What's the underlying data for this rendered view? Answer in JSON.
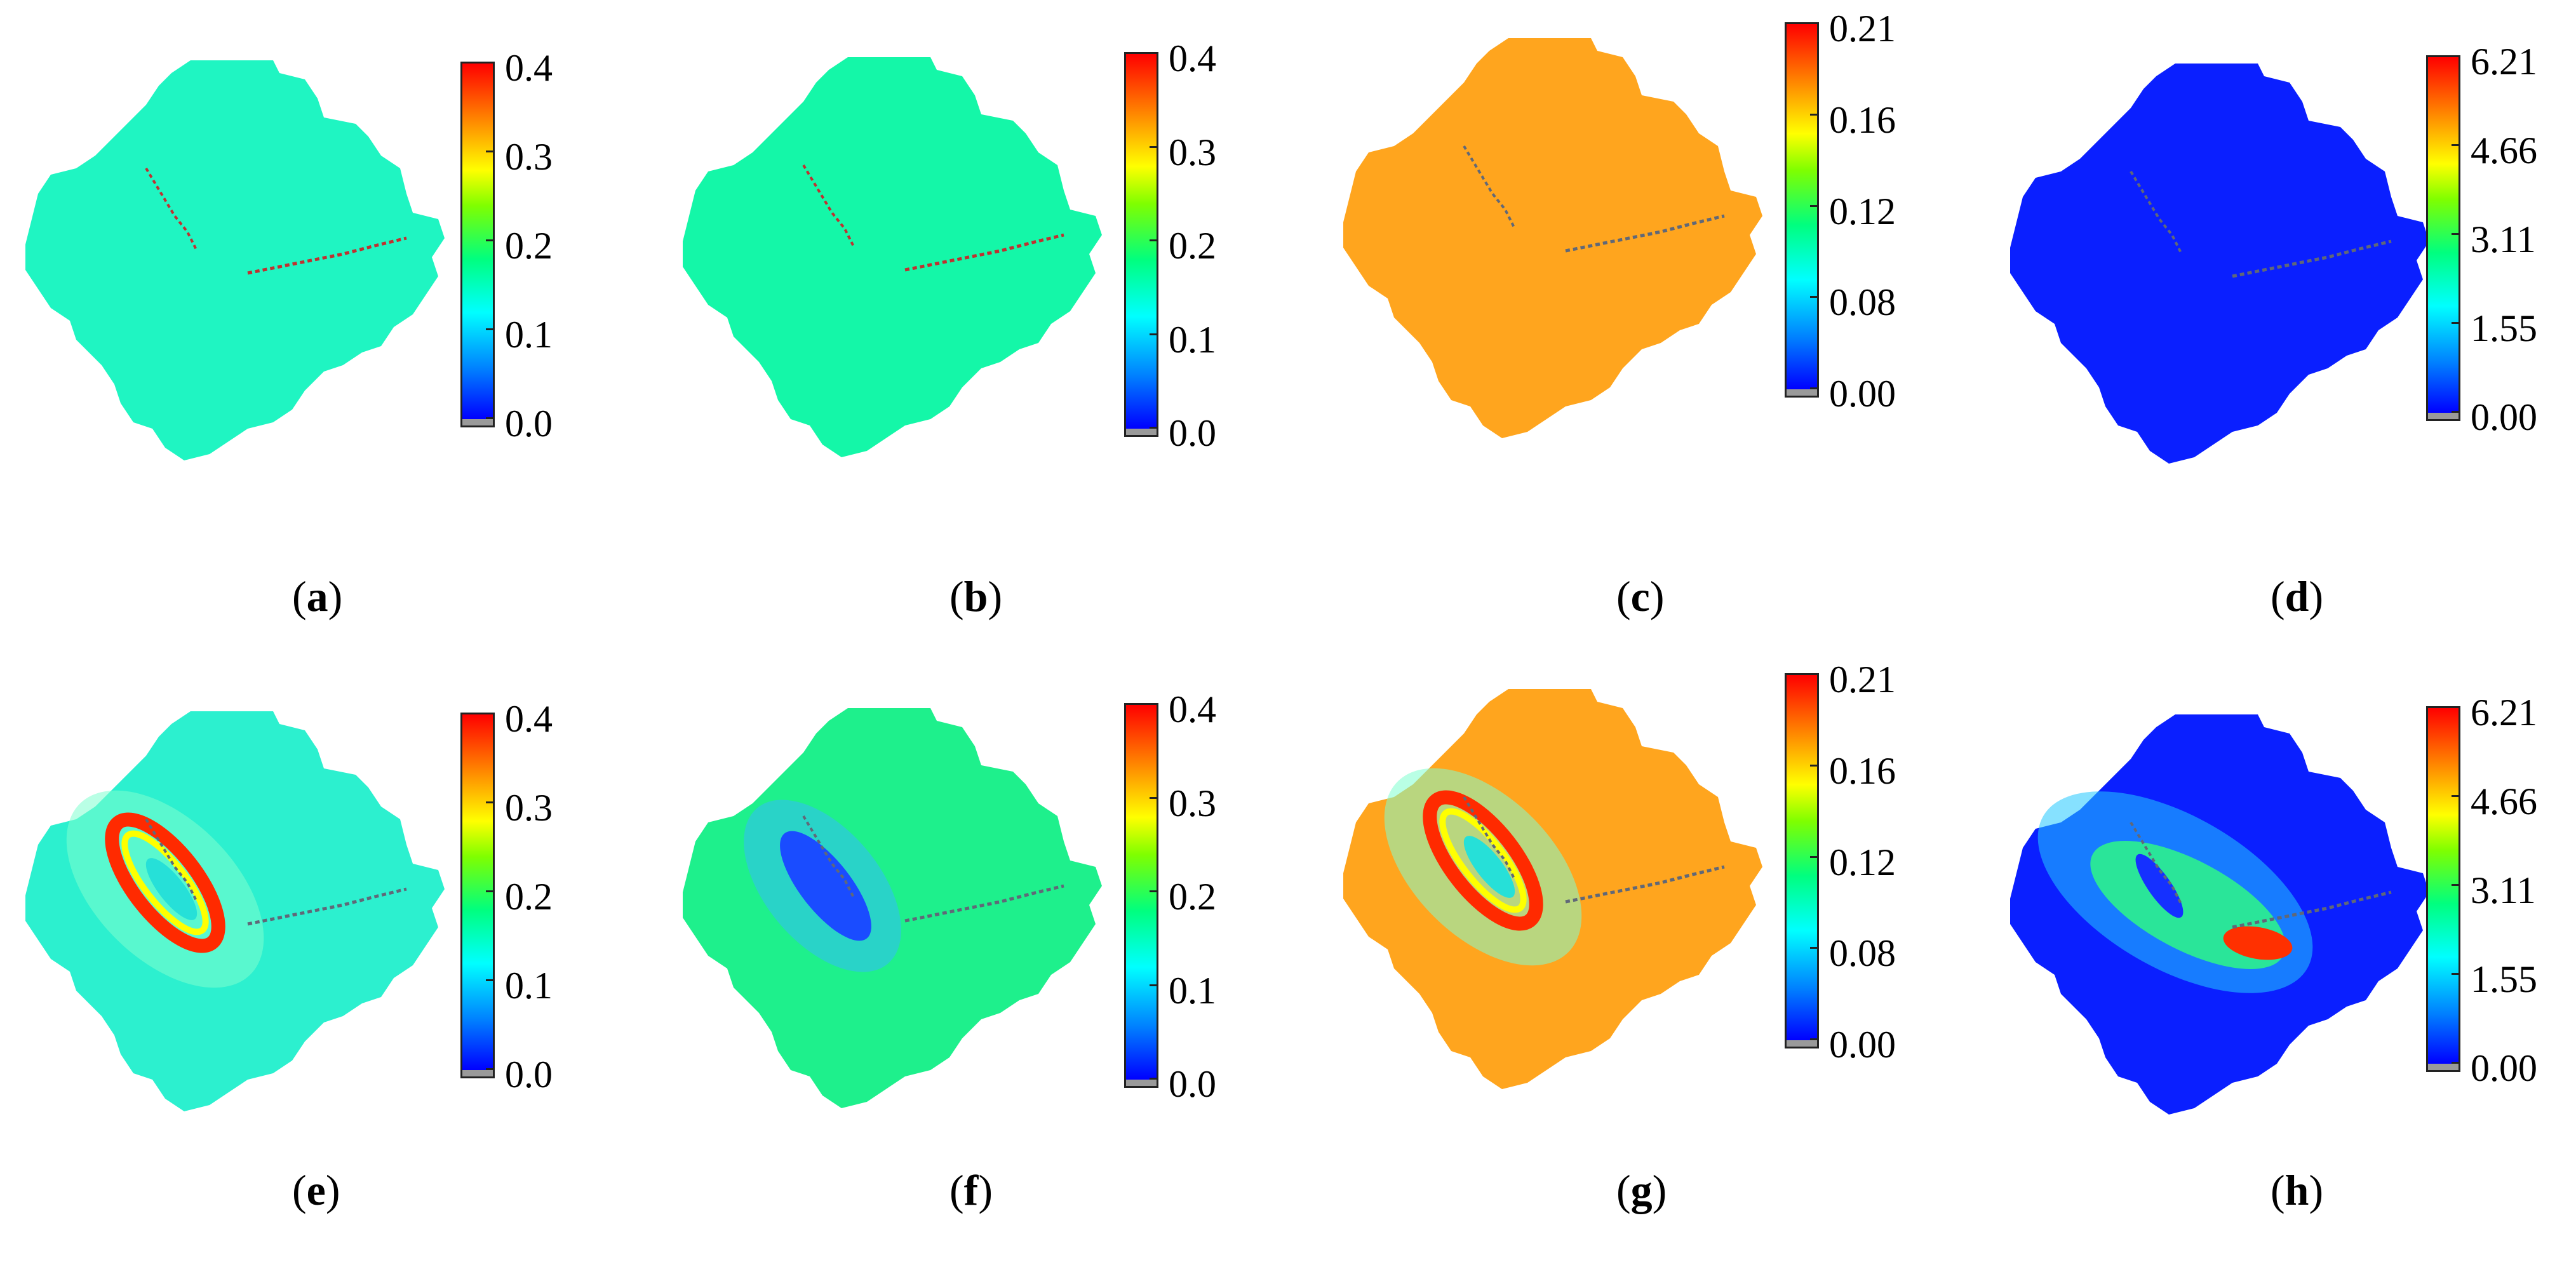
{
  "panels": [
    {
      "letter": "a",
      "fill": "#1ff5c2",
      "pattern": "none",
      "ticks": [
        "0.4",
        "0.3",
        "0.2",
        "0.1",
        "0.0"
      ]
    },
    {
      "letter": "b",
      "fill": "#14f7a8",
      "pattern": "none",
      "ticks": [
        "0.4",
        "0.3",
        "0.2",
        "0.1",
        "0.0"
      ]
    },
    {
      "letter": "c",
      "fill": "#ffa51e",
      "pattern": "none",
      "ticks": [
        "0.21",
        "0.16",
        "0.12",
        "0.08",
        "0.00"
      ]
    },
    {
      "letter": "d",
      "fill": "#0a1fff",
      "pattern": "none",
      "ticks": [
        "6.21",
        "4.66",
        "3.11",
        "1.55",
        "0.00"
      ]
    },
    {
      "letter": "e",
      "fill": "#2cf0cf",
      "pattern": "ring",
      "ticks": [
        "0.4",
        "0.3",
        "0.2",
        "0.1",
        "0.0"
      ]
    },
    {
      "letter": "f",
      "fill": "#1ef08c",
      "pattern": "trough",
      "ticks": [
        "0.4",
        "0.3",
        "0.2",
        "0.1",
        "0.0"
      ]
    },
    {
      "letter": "g",
      "fill": "#ffa51e",
      "pattern": "ring",
      "ticks": [
        "0.21",
        "0.16",
        "0.12",
        "0.08",
        "0.00"
      ]
    },
    {
      "letter": "h",
      "fill": "#0a1fff",
      "pattern": "plume",
      "ticks": [
        "6.21",
        "4.66",
        "3.11",
        "1.55",
        "0.00"
      ]
    }
  ]
}
